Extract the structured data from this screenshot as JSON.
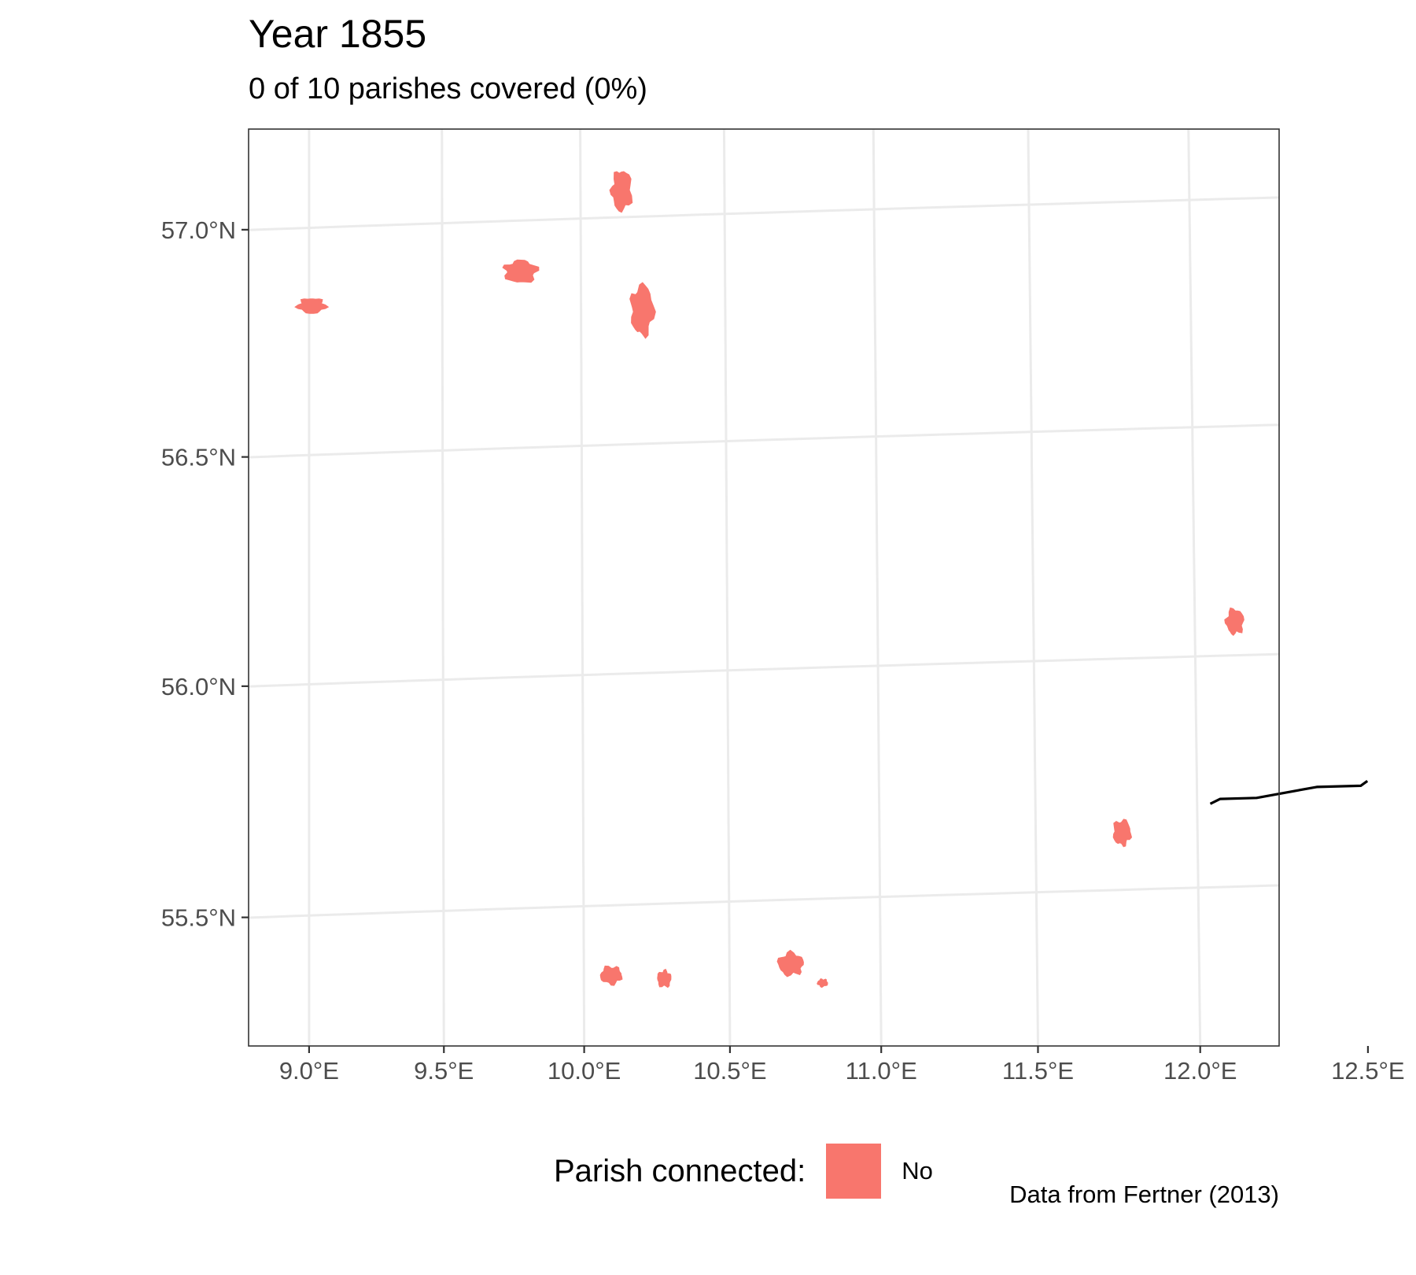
{
  "title": "Year 1855",
  "subtitle": "0 of 10 parishes covered (0%)",
  "caption": "Data from Fertner (2013)",
  "legend": {
    "title": "Parish connected:",
    "items": [
      {
        "label": "No",
        "color": "#F8766D"
      }
    ]
  },
  "colors": {
    "parish_fill": "#F8766D",
    "grid": "#EBEBEB",
    "panel_border": "#333333",
    "railway": "#000000"
  },
  "chart_data": {
    "type": "map",
    "title": "Year 1855",
    "subtitle": "0 of 10 parishes covered (0%)",
    "xlabel": "",
    "ylabel": "",
    "xlim": [
      8.8,
      12.7
    ],
    "ylim": [
      55.25,
      57.2
    ],
    "x_ticks": [
      {
        "value": 9.0,
        "label": "9.0°E"
      },
      {
        "value": 9.5,
        "label": "9.5°E"
      },
      {
        "value": 10.0,
        "label": "10.0°E"
      },
      {
        "value": 10.5,
        "label": "10.5°E"
      },
      {
        "value": 11.0,
        "label": "11.0°E"
      },
      {
        "value": 11.5,
        "label": "11.5°E"
      },
      {
        "value": 12.0,
        "label": "12.0°E"
      },
      {
        "value": 12.5,
        "label": "12.5°E"
      }
    ],
    "y_ticks": [
      {
        "value": 55.5,
        "label": "55.5°N"
      },
      {
        "value": 56.0,
        "label": "56.0°N"
      },
      {
        "value": 56.5,
        "label": "56.5°N"
      },
      {
        "value": 57.0,
        "label": "57.0°N"
      }
    ],
    "grid": true,
    "legend_position": "bottom",
    "parishes": [
      {
        "lon": 9.01,
        "lat": 56.83,
        "connected": "No"
      },
      {
        "lon": 9.78,
        "lat": 56.89,
        "connected": "No"
      },
      {
        "lon": 10.14,
        "lat": 57.06,
        "connected": "No"
      },
      {
        "lon": 10.21,
        "lat": 56.79,
        "connected": "No"
      },
      {
        "lon": 12.12,
        "lat": 56.07,
        "connected": "No"
      },
      {
        "lon": 11.77,
        "lat": 55.62,
        "connected": "No"
      },
      {
        "lon": 10.71,
        "lat": 55.36,
        "connected": "No"
      },
      {
        "lon": 10.1,
        "lat": 55.35,
        "connected": "No"
      },
      {
        "lon": 10.28,
        "lat": 55.34,
        "connected": "No"
      },
      {
        "lon": 10.81,
        "lat": 55.32,
        "connected": "No"
      }
    ],
    "railway": [
      [
        12.04,
        55.68
      ],
      [
        12.07,
        55.69
      ],
      [
        12.15,
        55.69
      ],
      [
        12.18,
        55.69
      ],
      [
        12.36,
        55.71
      ],
      [
        12.49,
        55.71
      ],
      [
        12.51,
        55.72
      ]
    ]
  }
}
